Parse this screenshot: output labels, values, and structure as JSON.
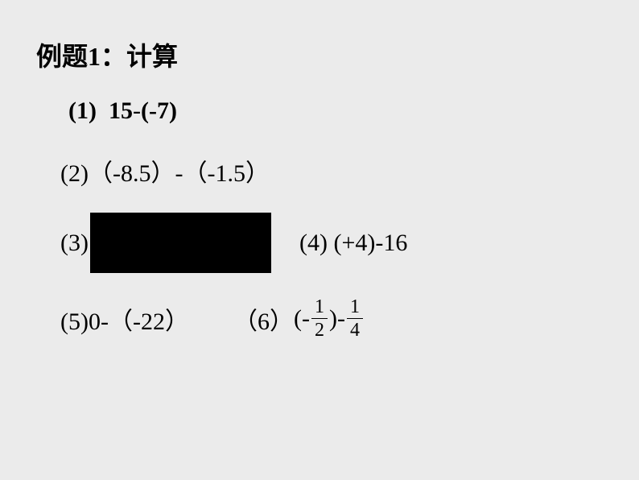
{
  "title": "例题1：计算",
  "problems": {
    "p1": {
      "label": "(1)",
      "expr_a": "15",
      "expr_b": "(-7)"
    },
    "p2": {
      "label": "(2)",
      "expr": "（-8.5）-（-1.5）"
    },
    "p3": {
      "label": "(3)"
    },
    "p4": {
      "label": "(4)",
      "expr": "(+4)-16"
    },
    "p5": {
      "label": "(5)",
      "expr": "0-（-22）"
    },
    "p6": {
      "label": "（6）",
      "prefix": "(-",
      "frac1_num": "1",
      "frac1_den": "2",
      "mid": ")-",
      "frac2_num": "1",
      "frac2_den": "4"
    }
  },
  "colors": {
    "background": "#ebebeb",
    "text": "#000000",
    "blackbox": "#000000"
  }
}
